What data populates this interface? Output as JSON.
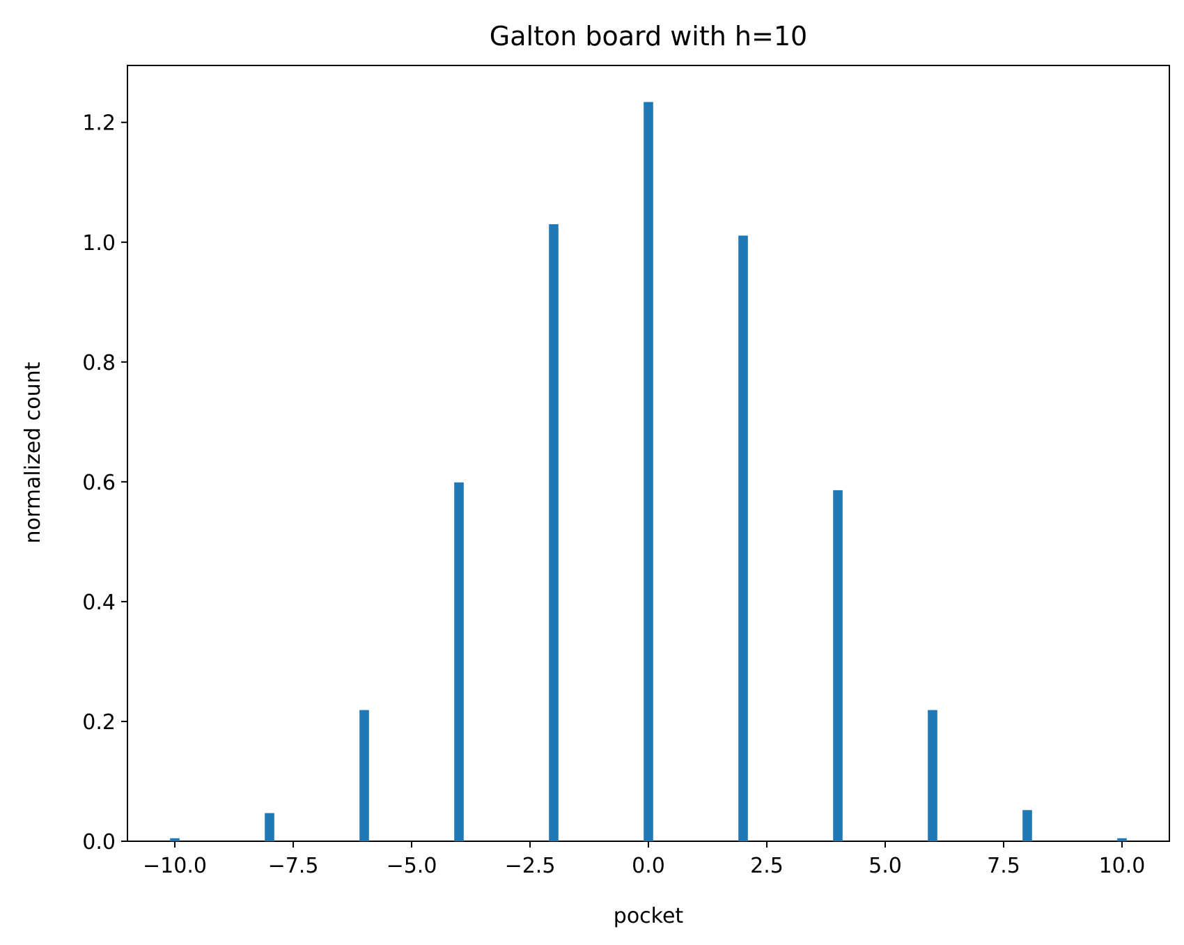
{
  "chart_data": {
    "type": "bar",
    "title": "Galton board with h=10",
    "xlabel": "pocket",
    "ylabel": "normalized count",
    "xlim": [
      -11.0,
      11.0
    ],
    "ylim": [
      0.0,
      1.295
    ],
    "grid": false,
    "legend": "none",
    "bar_color": "#1f77b4",
    "bar_width": 0.2,
    "x_ticks": [
      {
        "value": -10.0,
        "label": "−10.0"
      },
      {
        "value": -7.5,
        "label": "−7.5"
      },
      {
        "value": -5.0,
        "label": "−5.0"
      },
      {
        "value": -2.5,
        "label": "−2.5"
      },
      {
        "value": 0.0,
        "label": "0.0"
      },
      {
        "value": 2.5,
        "label": "2.5"
      },
      {
        "value": 5.0,
        "label": "5.0"
      },
      {
        "value": 7.5,
        "label": "7.5"
      },
      {
        "value": 10.0,
        "label": "10.0"
      }
    ],
    "y_ticks": [
      {
        "value": 0.0,
        "label": "0.0"
      },
      {
        "value": 0.2,
        "label": "0.2"
      },
      {
        "value": 0.4,
        "label": "0.4"
      },
      {
        "value": 0.6,
        "label": "0.6"
      },
      {
        "value": 0.8,
        "label": "0.8"
      },
      {
        "value": 1.0,
        "label": "1.0"
      },
      {
        "value": 1.2,
        "label": "1.2"
      }
    ],
    "x": [
      -10,
      -8,
      -6,
      -4,
      -2,
      0,
      2,
      4,
      6,
      8,
      10
    ],
    "values": [
      0.005,
      0.047,
      0.219,
      0.599,
      1.03,
      1.234,
      1.011,
      0.586,
      0.219,
      0.052,
      0.005
    ]
  }
}
